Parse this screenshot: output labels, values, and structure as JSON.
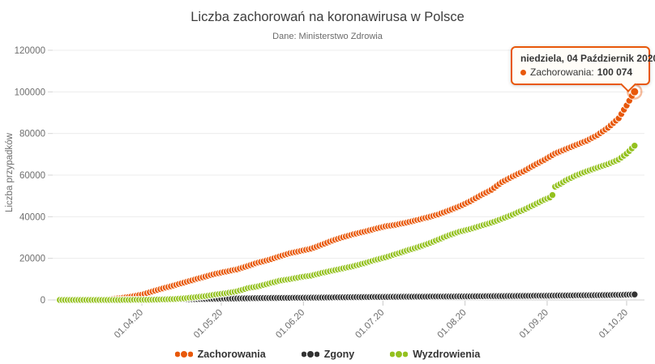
{
  "header": {
    "title": "Liczba zachorowań na koronawirusa w Polsce",
    "subtitle": "Dane: Ministerstwo Zdrowia"
  },
  "tooltip": {
    "date_label": "niedziela, 04 Październik 2020",
    "series_label": "Zachorowania:",
    "value": "100 074"
  },
  "legend": [
    {
      "label": "Zachorowania",
      "color": "#e8580a"
    },
    {
      "label": "Zgony",
      "color": "#333333"
    },
    {
      "label": "Wyzdrowienia",
      "color": "#94c11f"
    }
  ],
  "colors": {
    "accent_orange": "#e8580a",
    "deaths_dark": "#333333",
    "recovered_green": "#94c11f",
    "gridline": "#ececec",
    "axis_line": "#cfcfcf"
  },
  "chart_data": {
    "type": "scatter",
    "title": "Liczba zachorowań na koronawirusa w Polsce",
    "subtitle": "Dane: Ministerstwo Zdrowia",
    "xlabel": "",
    "ylabel": "Liczba przypadków",
    "ylim": [
      0,
      120000
    ],
    "y_ticks": [
      0,
      20000,
      40000,
      60000,
      80000,
      100000,
      120000
    ],
    "x_tick_labels": [
      "01.04.20",
      "01.05.20",
      "01.06.20",
      "01.07.20",
      "01.08.20",
      "01.09.20",
      "01.10.20"
    ],
    "x_tick_dates": [
      "04-01",
      "05-01",
      "06-01",
      "07-01",
      "08-01",
      "09-01",
      "10-01"
    ],
    "x_start": "03-01",
    "x_end": "10-04",
    "grid": "horizontal-only",
    "legend_position": "bottom",
    "series": [
      {
        "name": "Zachorowania",
        "color": "#e8580a",
        "points": [
          [
            "03-01",
            0
          ],
          [
            "03-04",
            1
          ],
          [
            "03-08",
            11
          ],
          [
            "03-12",
            49
          ],
          [
            "03-16",
            177
          ],
          [
            "03-20",
            425
          ],
          [
            "03-24",
            901
          ],
          [
            "03-28",
            1638
          ],
          [
            "04-01",
            2554
          ],
          [
            "04-05",
            4102
          ],
          [
            "04-09",
            5575
          ],
          [
            "04-13",
            6934
          ],
          [
            "04-17",
            8379
          ],
          [
            "04-21",
            9856
          ],
          [
            "04-25",
            11273
          ],
          [
            "04-29",
            12640
          ],
          [
            "05-03",
            13693
          ],
          [
            "05-07",
            14740
          ],
          [
            "05-11",
            16326
          ],
          [
            "05-15",
            18016
          ],
          [
            "05-19",
            19268
          ],
          [
            "05-23",
            20931
          ],
          [
            "05-27",
            22473
          ],
          [
            "05-31",
            23571
          ],
          [
            "06-04",
            24687
          ],
          [
            "06-08",
            26561
          ],
          [
            "06-12",
            28577
          ],
          [
            "06-16",
            30195
          ],
          [
            "06-20",
            31620
          ],
          [
            "06-24",
            32821
          ],
          [
            "06-28",
            34154
          ],
          [
            "07-02",
            35405
          ],
          [
            "07-06",
            36155
          ],
          [
            "07-10",
            37216
          ],
          [
            "07-14",
            38457
          ],
          [
            "07-18",
            39746
          ],
          [
            "07-22",
            41162
          ],
          [
            "07-26",
            43065
          ],
          [
            "07-30",
            45031
          ],
          [
            "08-03",
            47469
          ],
          [
            "08-07",
            50324
          ],
          [
            "08-11",
            52961
          ],
          [
            "08-15",
            56684
          ],
          [
            "08-19",
            59378
          ],
          [
            "08-23",
            61762
          ],
          [
            "08-27",
            64689
          ],
          [
            "08-31",
            67372
          ],
          [
            "09-04",
            70387
          ],
          [
            "09-08",
            72453
          ],
          [
            "09-12",
            74529
          ],
          [
            "09-16",
            76571
          ],
          [
            "09-20",
            79240
          ],
          [
            "09-24",
            82809
          ],
          [
            "09-28",
            87330
          ],
          [
            "10-01",
            93481
          ],
          [
            "10-02",
            95773
          ],
          [
            "10-03",
            98140
          ],
          [
            "10-04",
            100074
          ]
        ]
      },
      {
        "name": "Zgony",
        "color": "#333333",
        "points": [
          [
            "03-01",
            0
          ],
          [
            "03-12",
            1
          ],
          [
            "03-16",
            4
          ],
          [
            "03-20",
            10
          ],
          [
            "03-24",
            11
          ],
          [
            "03-28",
            18
          ],
          [
            "04-01",
            43
          ],
          [
            "04-05",
            94
          ],
          [
            "04-09",
            174
          ],
          [
            "04-13",
            245
          ],
          [
            "04-17",
            332
          ],
          [
            "04-21",
            401
          ],
          [
            "04-25",
            524
          ],
          [
            "04-29",
            578
          ],
          [
            "05-03",
            678
          ],
          [
            "05-07",
            733
          ],
          [
            "05-11",
            811
          ],
          [
            "05-15",
            907
          ],
          [
            "05-19",
            948
          ],
          [
            "05-23",
            1007
          ],
          [
            "05-27",
            1024
          ],
          [
            "05-31",
            1061
          ],
          [
            "06-04",
            1115
          ],
          [
            "06-08",
            1157
          ],
          [
            "06-12",
            1222
          ],
          [
            "06-16",
            1287
          ],
          [
            "06-20",
            1337
          ],
          [
            "06-24",
            1396
          ],
          [
            "06-28",
            1444
          ],
          [
            "07-02",
            1492
          ],
          [
            "07-06",
            1521
          ],
          [
            "07-10",
            1562
          ],
          [
            "07-14",
            1588
          ],
          [
            "07-18",
            1612
          ],
          [
            "07-22",
            1636
          ],
          [
            "07-26",
            1665
          ],
          [
            "07-30",
            1709
          ],
          [
            "08-03",
            1732
          ],
          [
            "08-07",
            1787
          ],
          [
            "08-11",
            1844
          ],
          [
            "08-15",
            1877
          ],
          [
            "08-19",
            1913
          ],
          [
            "08-23",
            1960
          ],
          [
            "08-27",
            2010
          ],
          [
            "08-31",
            2039
          ],
          [
            "09-04",
            2113
          ],
          [
            "09-08",
            2158
          ],
          [
            "09-12",
            2203
          ],
          [
            "09-16",
            2253
          ],
          [
            "09-20",
            2293
          ],
          [
            "09-24",
            2369
          ],
          [
            "09-28",
            2432
          ],
          [
            "10-01",
            2543
          ],
          [
            "10-04",
            2630
          ]
        ]
      },
      {
        "name": "Wyzdrowienia",
        "color": "#94c11f",
        "points": [
          [
            "03-01",
            0
          ],
          [
            "03-16",
            13
          ],
          [
            "03-24",
            18
          ],
          [
            "04-01",
            91
          ],
          [
            "04-05",
            134
          ],
          [
            "04-09",
            284
          ],
          [
            "04-13",
            439
          ],
          [
            "04-17",
            772
          ],
          [
            "04-21",
            1297
          ],
          [
            "04-25",
            1862
          ],
          [
            "04-29",
            2655
          ],
          [
            "05-03",
            3281
          ],
          [
            "05-07",
            4157
          ],
          [
            "05-11",
            5698
          ],
          [
            "05-15",
            6571
          ],
          [
            "05-19",
            7903
          ],
          [
            "05-23",
            9276
          ],
          [
            "05-27",
            10020
          ],
          [
            "05-31",
            11014
          ],
          [
            "06-04",
            11726
          ],
          [
            "06-08",
            12998
          ],
          [
            "06-12",
            14104
          ],
          [
            "06-16",
            15199
          ],
          [
            "06-20",
            16297
          ],
          [
            "06-24",
            17615
          ],
          [
            "06-28",
            19172
          ],
          [
            "07-02",
            20504
          ],
          [
            "07-06",
            22078
          ],
          [
            "07-10",
            23753
          ],
          [
            "07-14",
            25288
          ],
          [
            "07-18",
            27014
          ],
          [
            "07-22",
            29047
          ],
          [
            "07-26",
            31139
          ],
          [
            "07-30",
            32856
          ],
          [
            "08-03",
            34078
          ],
          [
            "08-07",
            35642
          ],
          [
            "08-11",
            37175
          ],
          [
            "08-15",
            39041
          ],
          [
            "08-19",
            41033
          ],
          [
            "08-23",
            43242
          ],
          [
            "08-27",
            45671
          ],
          [
            "08-31",
            48245
          ],
          [
            "09-02",
            49240
          ],
          [
            "09-03",
            50411
          ],
          [
            "09-04",
            54420
          ],
          [
            "09-06",
            55812
          ],
          [
            "09-08",
            57437
          ],
          [
            "09-12",
            59922
          ],
          [
            "09-16",
            61860
          ],
          [
            "09-20",
            63636
          ],
          [
            "09-24",
            65293
          ],
          [
            "09-28",
            67475
          ],
          [
            "10-01",
            70308
          ],
          [
            "10-04",
            74152
          ]
        ]
      }
    ],
    "highlight": {
      "series": "Zachorowania",
      "date": "10-04",
      "value": 100074
    }
  }
}
